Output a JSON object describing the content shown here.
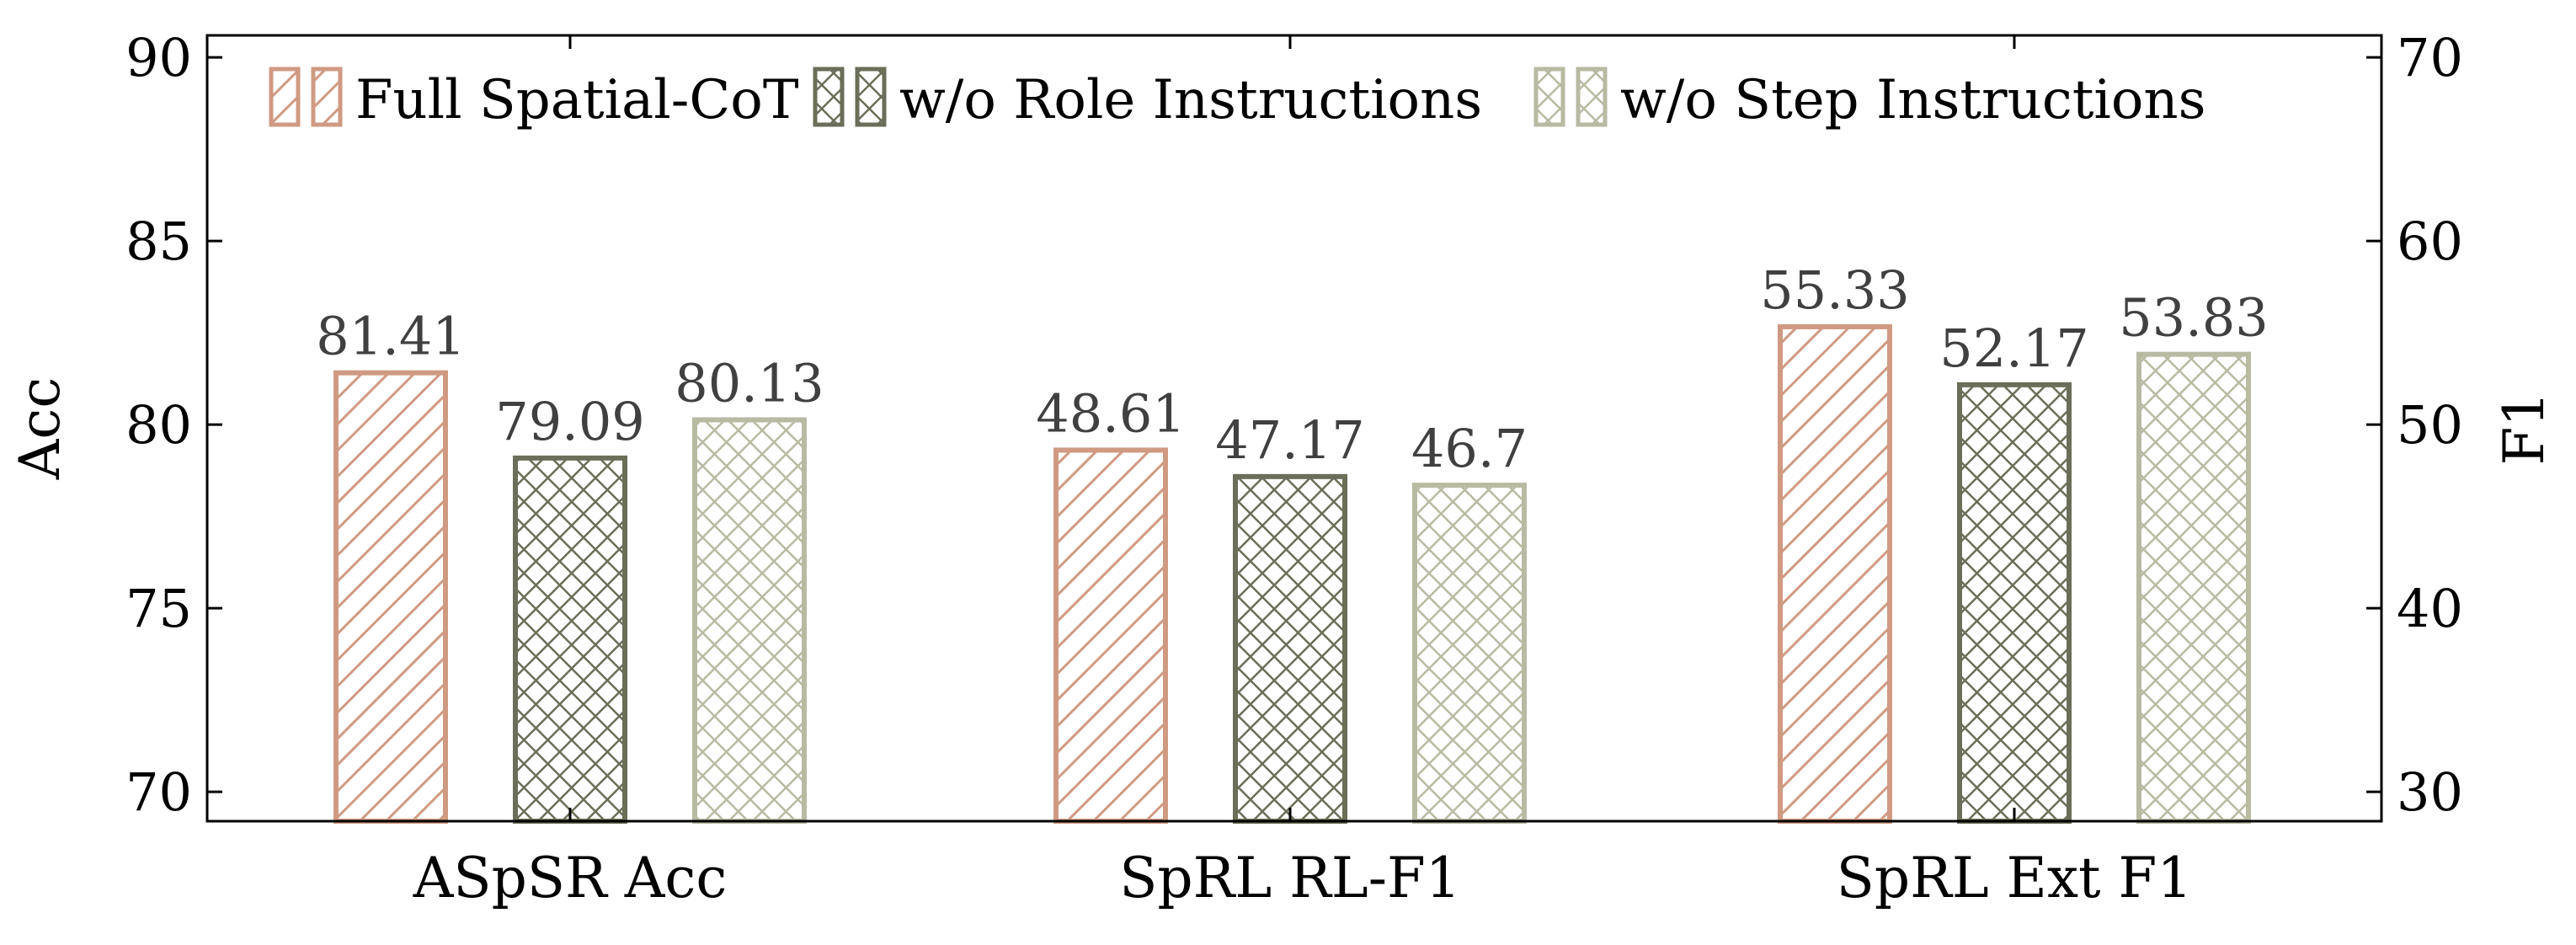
{
  "chart_data": {
    "type": "bar",
    "categories": [
      "ASpSR Acc",
      "SpRL RL-F1",
      "SpRL Ext F1"
    ],
    "series": [
      {
        "name": "Full Spatial-CoT",
        "values": [
          81.41,
          48.61,
          55.33
        ],
        "labels": [
          "81.41",
          "48.61",
          "55.33"
        ],
        "color": "#d09a82",
        "pattern": "diagonal-hatch"
      },
      {
        "name": "w/o Role Instructions",
        "values": [
          79.09,
          47.17,
          52.17
        ],
        "labels": [
          "79.09",
          "47.17",
          "52.17"
        ],
        "color": "#6b6e58",
        "pattern": "crosshatch"
      },
      {
        "name": "w/o Step Instructions",
        "values": [
          80.13,
          46.7,
          53.83
        ],
        "labels": [
          "80.13",
          "46.7",
          "53.83"
        ],
        "color": "#b9baa2",
        "pattern": "crosshatch"
      }
    ],
    "value_axis": [
      "left",
      "right",
      "right"
    ],
    "title": "",
    "xlabel": "",
    "ylabel": "Acc",
    "y2label": "F1",
    "ylim": [
      69.2,
      90.6
    ],
    "y2lim": [
      28.4,
      71.2
    ],
    "yticks": [
      70,
      75,
      80,
      85,
      90
    ],
    "y2ticks": [
      30,
      40,
      50,
      60,
      70
    ],
    "legend_position": "top",
    "grid": false
  }
}
